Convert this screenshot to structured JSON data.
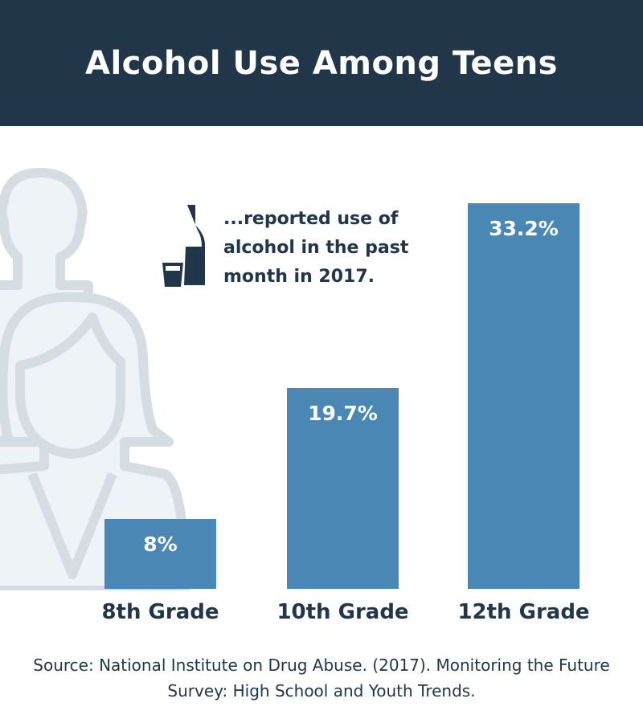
{
  "header": {
    "title": "Alcohol Use Among Teens"
  },
  "note": {
    "text": "...reported use of alcohol in the past month in 2017.",
    "icon": "wine-bottle-glass-icon"
  },
  "colors": {
    "header": "#22364a",
    "bar": "#4a87b5",
    "text": "#22364a",
    "illustration_fill": "#eef3f7",
    "illustration_stroke": "#d5dce2"
  },
  "chart_data": {
    "type": "bar",
    "title": "Alcohol Use Among Teens",
    "categories": [
      "8th Grade",
      "10th Grade",
      "12th Grade"
    ],
    "values": [
      8,
      19.7,
      33.2
    ],
    "data_labels": [
      "8%",
      "19.7%",
      "33.2%"
    ],
    "xlabel": "",
    "ylabel": "",
    "ylim": [
      0,
      33.2
    ],
    "grid": false
  },
  "source": {
    "line1": "Source: National Institute on Drug Abuse. (2017). Monitoring the Future",
    "line2": "Survey: High School and Youth Trends."
  }
}
